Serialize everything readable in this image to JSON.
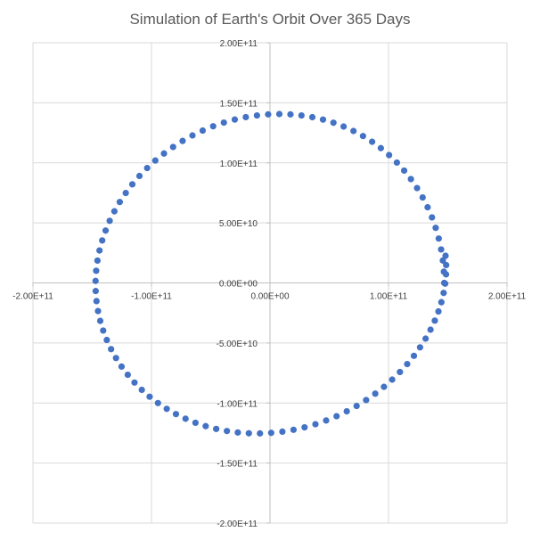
{
  "chart_data": {
    "type": "scatter",
    "title": "Simulation of Earth's Orbit Over 365 Days",
    "xlabel": "",
    "ylabel": "",
    "xlim": [
      -200000000000.0,
      200000000000.0
    ],
    "ylim": [
      -200000000000.0,
      200000000000.0
    ],
    "x_ticks": [
      -200000000000.0,
      -100000000000.0,
      0,
      100000000000.0,
      200000000000.0
    ],
    "x_tick_labels": [
      "-2.00E+11",
      "-1.00E+11",
      "0.00E+00",
      "1.00E+11",
      "2.00E+11"
    ],
    "y_ticks": [
      200000000000.0,
      150000000000.0,
      100000000000.0,
      50000000000.0,
      0,
      -50000000000.0,
      -100000000000.0,
      -150000000000.0,
      -200000000000.0
    ],
    "y_tick_labels": [
      "2.00E+11",
      "1.50E+11",
      "1.00E+11",
      "5.00E+10",
      "0.00E+00",
      "-5.00E+10",
      "-1.00E+11",
      "-1.50E+11",
      "-2.00E+11"
    ],
    "grid": true,
    "legend": "none",
    "marker_color": "#4472c4",
    "series": [
      {
        "points_estimated": true,
        "x": [
          147000000000.0,
          146710000000.0,
          145840000000.0,
          144390000000.0,
          142370000000.0,
          139790000000.0,
          136660000000.0,
          132990000000.0,
          128790000000.0,
          124090000000.0,
          118880000000.0,
          113200000000.0,
          107070000000.0,
          100500000000.0,
          93530000000.0,
          86170000000.0,
          78470000000.0,
          70440000000.0,
          62120000000.0,
          53530000000.0,
          44720000000.0,
          35720000000.0,
          26550000000.0,
          17260000000.0,
          7880000000.0,
          -1560000000.0,
          -11000000000.0,
          -20400000000.0,
          -29730000000.0,
          -38930000000.0,
          -47970000000.0,
          -56810000000.0,
          -65420000000.0,
          -73740000000.0,
          -81760000000.0,
          -89440000000.0,
          -96750000000.0,
          -103660000000.0,
          -110140000000.0,
          -116160000000.0,
          -121710000000.0,
          -126760000000.0,
          -131290000000.0,
          -135280000000.0,
          -138710000000.0,
          -141580000000.0,
          -143870000000.0,
          -145570000000.0,
          -146680000000.0,
          -147190000000.0,
          -147090000000.0,
          -146400000000.0,
          -145110000000.0,
          -143230000000.0,
          -140750000000.0,
          -137700000000.0,
          -134090000000.0,
          -129930000000.0,
          -125240000000.0,
          -120030000000.0,
          -114330000000.0,
          -108160000000.0,
          -101550000000.0,
          -94530000000.0,
          -87120000000.0,
          -79350000000.0,
          -71270000000.0,
          -62890000000.0,
          -54260000000.0,
          -45400000000.0,
          -36360000000.0,
          -27160000000.0,
          -17850000000.0,
          -8460000000.0,
          990000000.0,
          10440000000.0,
          19850000000.0,
          29160000000.0,
          38340000000.0,
          47360000000.0,
          56180000000.0,
          64770000000.0,
          73090000000.0,
          81110000000.0,
          88810000000.0,
          96150000000.0,
          103100000000.0,
          109650000000.0,
          115770000000.0,
          121430000000.0,
          126610000000.0,
          131290000000.0,
          135450000000.0,
          139060000000.0,
          142120000000.0,
          144610000000.0,
          146510000000.0,
          147820000000.0,
          148530000000.0,
          148630000000.0,
          148130000000.0
        ],
        "y": [
          0,
          9350000000.0,
          18660000000.0,
          27880000000.0,
          36960000000.0,
          45870000000.0,
          54570000000.0,
          63010000000.0,
          71170000000.0,
          79000000000.0,
          86470000000.0,
          93560000000.0,
          100240000000.0,
          106470000000.0,
          112240000000.0,
          117520000000.0,
          122290000000.0,
          126540000000.0,
          130250000000.0,
          133410000000.0,
          136010000000.0,
          138030000000.0,
          139480000000.0,
          140350000000.0,
          140640000000.0,
          140350000000.0,
          139490000000.0,
          138060000000.0,
          136070000000.0,
          133540000000.0,
          130470000000.0,
          126890000000.0,
          122810000000.0,
          118250000000.0,
          113230000000.0,
          107780000000.0,
          101920000000.0,
          95670000000.0,
          89060000000.0,
          82120000000.0,
          74890000000.0,
          67390000000.0,
          59660000000.0,
          51720000000.0,
          43610000000.0,
          35370000000.0,
          27020000000.0,
          18600000000.0,
          10140000000.0,
          1680000000.0,
          -6760000000.0,
          -15140000000.0,
          -23430000000.0,
          -31610000000.0,
          -39650000000.0,
          -47510000000.0,
          -55160000000.0,
          -62560000000.0,
          -69680000000.0,
          -76490000000.0,
          -82960000000.0,
          -89060000000.0,
          -94760000000.0,
          -100030000000.0,
          -104860000000.0,
          -109220000000.0,
          -113090000000.0,
          -116450000000.0,
          -119290000000.0,
          -121590000000.0,
          -123350000000.0,
          -124560000000.0,
          -125210000000.0,
          -125310000000.0,
          -124860000000.0,
          -123860000000.0,
          -122320000000.0,
          -120250000000.0,
          -117660000000.0,
          -114570000000.0,
          -110990000000.0,
          -106940000000.0,
          -102450000000.0,
          -97540000000.0,
          -92230000000.0,
          -86550000000.0,
          -80530000000.0,
          -74200000000.0,
          -67590000000.0,
          -60730000000.0,
          -53650000000.0,
          -46380000000.0,
          -38960000000.0,
          -31410000000.0,
          -23770000000.0,
          -16070000000.0,
          -8340000000.0,
          -600000000.0,
          7150000000.0,
          14890000000.0,
          22620000000.0
        ]
      }
    ]
  }
}
